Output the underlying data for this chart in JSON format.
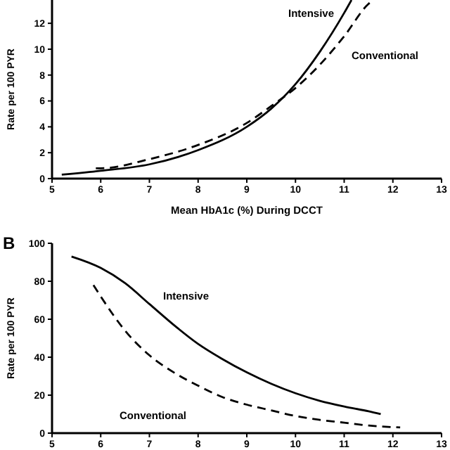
{
  "chart_data": [
    {
      "type": "line",
      "xlabel": "Mean HbA1c (%) During DCCT",
      "ylabel": "Rate per 100 PYR",
      "xlim": [
        5,
        13
      ],
      "ylim": [
        0,
        13.8
      ],
      "xticks": [
        5,
        6,
        7,
        8,
        9,
        10,
        11,
        12,
        13
      ],
      "yticks": [
        0,
        2,
        4,
        6,
        8,
        10,
        12
      ],
      "series": [
        {
          "name": "Intensive",
          "color": "#000000",
          "line_style": "solid",
          "x": [
            5.2,
            6,
            7,
            8,
            9,
            9.5,
            10,
            10.5,
            11,
            11.15
          ],
          "values": [
            0.3,
            0.6,
            1.1,
            2.2,
            4.0,
            5.4,
            7.3,
            9.8,
            12.8,
            13.8
          ]
        },
        {
          "name": "Conventional",
          "color": "#000000",
          "line_style": "dashed",
          "x": [
            5.9,
            6,
            7,
            8,
            9,
            9.5,
            10,
            10.5,
            11,
            11.5,
            11.6
          ],
          "values": [
            0.8,
            0.8,
            1.5,
            2.6,
            4.3,
            5.6,
            7.0,
            8.8,
            11.0,
            13.5,
            13.8
          ]
        }
      ]
    },
    {
      "type": "line",
      "ylabel": "Rate per 100 PYR",
      "xlim": [
        5,
        13
      ],
      "ylim": [
        0,
        100
      ],
      "xticks": [
        5,
        6,
        7,
        8,
        9,
        10,
        11,
        12,
        13
      ],
      "yticks": [
        0,
        20,
        40,
        60,
        80,
        100
      ],
      "annotations": [
        "B"
      ],
      "series": [
        {
          "name": "Intensive",
          "color": "#000000",
          "line_style": "solid",
          "x": [
            5.4,
            6,
            6.5,
            7,
            7.5,
            8,
            8.5,
            9,
            9.5,
            10,
            10.5,
            11,
            11.5,
            11.75
          ],
          "values": [
            93,
            87,
            79,
            68,
            57,
            47,
            39,
            32,
            26,
            21,
            17,
            14,
            11.5,
            10
          ]
        },
        {
          "name": "Conventional",
          "color": "#000000",
          "line_style": "dashed",
          "x": [
            5.85,
            6,
            6.5,
            7,
            7.5,
            8,
            8.5,
            9,
            9.5,
            10,
            10.5,
            11,
            11.5,
            12.15
          ],
          "values": [
            78,
            72,
            54,
            41,
            32,
            25,
            19,
            15,
            12,
            9,
            7,
            5.5,
            4,
            3
          ]
        }
      ]
    }
  ]
}
